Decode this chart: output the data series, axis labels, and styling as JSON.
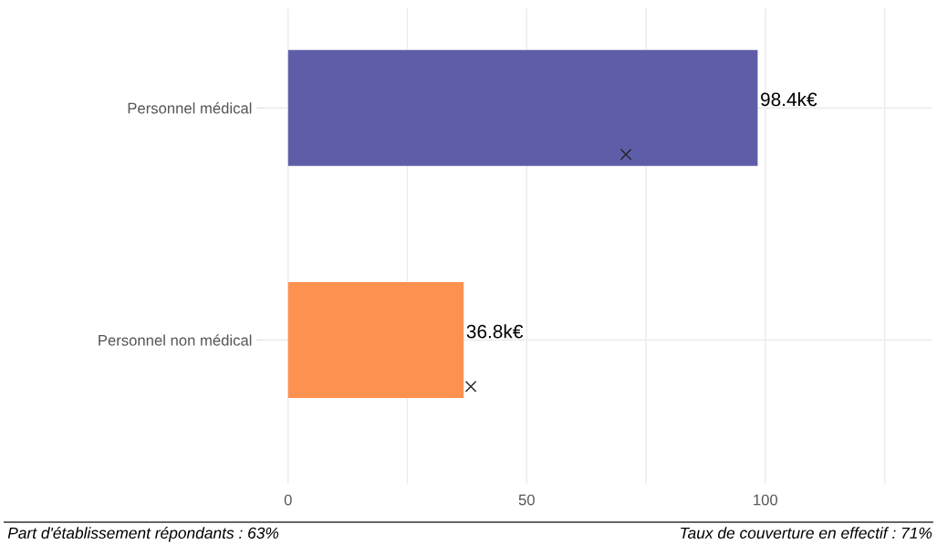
{
  "chart_data": {
    "type": "bar",
    "orientation": "horizontal",
    "categories": [
      "Personnel médical",
      "Personnel non médical"
    ],
    "series": [
      {
        "colors": [
          "#5e5ea8",
          "#fd9250"
        ],
        "values": [
          98.4,
          36.8
        ],
        "value_labels": [
          "98.4k€",
          "36.8k€"
        ]
      },
      {
        "type": "scatter",
        "x": [
          "Personnel médical",
          "Personnel non médical"
        ],
        "values": [
          70.8,
          38.3
        ],
        "color": "#222222",
        "marker": "cross"
      }
    ],
    "xlim": [
      -5,
      135
    ],
    "xticks": [
      0,
      {
        "value": 25,
        "label": null
      },
      50,
      {
        "value": 75,
        "label": null
      },
      100,
      {
        "value": 125,
        "label": null
      }
    ],
    "grid": true,
    "annotations": [
      "Part d'établissement répondants : 63%",
      "Taux de couverture en effectif : 71%"
    ]
  }
}
